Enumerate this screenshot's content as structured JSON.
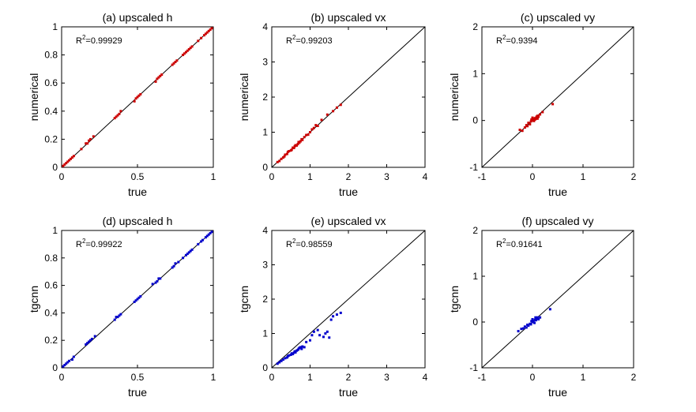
{
  "colors": {
    "numerical": "#cc0000",
    "tgcnn": "#0000cc",
    "line": "#000000"
  },
  "chart_data": [
    {
      "type": "scatter",
      "title": "(a) upscaled h",
      "xlabel": "true",
      "ylabel": "numerical",
      "r2_label": "R",
      "r2_value": "=0.99929",
      "xlim": [
        0,
        1
      ],
      "ylim": [
        0,
        1
      ],
      "xticks": [
        "0",
        "0.5",
        "1"
      ],
      "yticks": [
        "0",
        "0.2",
        "0.4",
        "0.6",
        "0.8",
        "1"
      ],
      "series": [
        {
          "color": "numerical",
          "points": [
            [
              0.01,
              0.01
            ],
            [
              0.02,
              0.02
            ],
            [
              0.03,
              0.03
            ],
            [
              0.04,
              0.04
            ],
            [
              0.05,
              0.05
            ],
            [
              0.06,
              0.06
            ],
            [
              0.07,
              0.07
            ],
            [
              0.08,
              0.08
            ],
            [
              0.13,
              0.13
            ],
            [
              0.16,
              0.17
            ],
            [
              0.17,
              0.17
            ],
            [
              0.18,
              0.19
            ],
            [
              0.19,
              0.2
            ],
            [
              0.21,
              0.22
            ],
            [
              0.35,
              0.35
            ],
            [
              0.36,
              0.36
            ],
            [
              0.37,
              0.37
            ],
            [
              0.38,
              0.38
            ],
            [
              0.39,
              0.4
            ],
            [
              0.48,
              0.47
            ],
            [
              0.49,
              0.49
            ],
            [
              0.5,
              0.5
            ],
            [
              0.51,
              0.51
            ],
            [
              0.52,
              0.52
            ],
            [
              0.62,
              0.61
            ],
            [
              0.63,
              0.63
            ],
            [
              0.64,
              0.64
            ],
            [
              0.65,
              0.65
            ],
            [
              0.66,
              0.66
            ],
            [
              0.73,
              0.73
            ],
            [
              0.74,
              0.74
            ],
            [
              0.75,
              0.75
            ],
            [
              0.76,
              0.76
            ],
            [
              0.8,
              0.8
            ],
            [
              0.81,
              0.81
            ],
            [
              0.82,
              0.82
            ],
            [
              0.83,
              0.83
            ],
            [
              0.84,
              0.84
            ],
            [
              0.85,
              0.85
            ],
            [
              0.86,
              0.86
            ],
            [
              0.9,
              0.9
            ],
            [
              0.92,
              0.92
            ],
            [
              0.94,
              0.94
            ],
            [
              0.95,
              0.95
            ],
            [
              0.96,
              0.96
            ],
            [
              0.97,
              0.97
            ],
            [
              0.98,
              0.98
            ],
            [
              0.99,
              0.99
            ]
          ]
        }
      ]
    },
    {
      "type": "scatter",
      "title": "(b) upscaled vx",
      "xlabel": "true",
      "ylabel": "numerical",
      "r2_label": "R",
      "r2_value": "=0.99203",
      "xlim": [
        0,
        4
      ],
      "ylim": [
        0,
        4
      ],
      "xticks": [
        "0",
        "1",
        "2",
        "3",
        "4"
      ],
      "yticks": [
        "0",
        "1",
        "2",
        "3",
        "4"
      ],
      "series": [
        {
          "color": "numerical",
          "points": [
            [
              0.15,
              0.15
            ],
            [
              0.2,
              0.18
            ],
            [
              0.25,
              0.24
            ],
            [
              0.3,
              0.28
            ],
            [
              0.33,
              0.31
            ],
            [
              0.35,
              0.36
            ],
            [
              0.4,
              0.38
            ],
            [
              0.42,
              0.44
            ],
            [
              0.45,
              0.46
            ],
            [
              0.5,
              0.48
            ],
            [
              0.52,
              0.5
            ],
            [
              0.55,
              0.56
            ],
            [
              0.58,
              0.55
            ],
            [
              0.6,
              0.6
            ],
            [
              0.62,
              0.63
            ],
            [
              0.65,
              0.62
            ],
            [
              0.68,
              0.66
            ],
            [
              0.7,
              0.72
            ],
            [
              0.72,
              0.7
            ],
            [
              0.75,
              0.74
            ],
            [
              0.78,
              0.8
            ],
            [
              0.8,
              0.78
            ],
            [
              0.85,
              0.86
            ],
            [
              0.9,
              0.92
            ],
            [
              0.95,
              0.93
            ],
            [
              1.0,
              1.0
            ],
            [
              1.05,
              1.08
            ],
            [
              1.1,
              1.12
            ],
            [
              1.15,
              1.2
            ],
            [
              1.2,
              1.18
            ],
            [
              1.3,
              1.35
            ],
            [
              1.45,
              1.5
            ],
            [
              1.6,
              1.6
            ],
            [
              1.7,
              1.7
            ],
            [
              1.8,
              1.78
            ]
          ]
        }
      ]
    },
    {
      "type": "scatter",
      "title": "(c) upscaled vy",
      "xlabel": "true",
      "ylabel": "numerical",
      "r2_label": "R",
      "r2_value": "=0.9394",
      "xlim": [
        -1,
        2
      ],
      "ylim": [
        -1,
        2
      ],
      "xticks": [
        "-1",
        "0",
        "1",
        "2"
      ],
      "yticks": [
        "-1",
        "0",
        "1",
        "2"
      ],
      "series": [
        {
          "color": "numerical",
          "points": [
            [
              -0.25,
              -0.2
            ],
            [
              -0.2,
              -0.22
            ],
            [
              -0.15,
              -0.15
            ],
            [
              -0.12,
              -0.1
            ],
            [
              -0.1,
              -0.12
            ],
            [
              -0.08,
              -0.05
            ],
            [
              -0.05,
              -0.08
            ],
            [
              -0.03,
              -0.02
            ],
            [
              0.0,
              0.0
            ],
            [
              0.02,
              0.03
            ],
            [
              0.03,
              -0.01
            ],
            [
              0.05,
              0.05
            ],
            [
              0.07,
              0.04
            ],
            [
              0.08,
              0.08
            ],
            [
              0.1,
              0.1
            ],
            [
              0.12,
              0.08
            ],
            [
              0.15,
              0.13
            ],
            [
              0.2,
              0.18
            ],
            [
              0.05,
              0.02
            ],
            [
              -0.02,
              0.02
            ],
            [
              0.0,
              0.06
            ],
            [
              0.1,
              0.04
            ],
            [
              0.4,
              0.35
            ]
          ]
        }
      ]
    },
    {
      "type": "scatter",
      "title": "(d) upscaled h",
      "xlabel": "true",
      "ylabel": "tgcnn",
      "r2_label": "R",
      "r2_value": "=0.99922",
      "xlim": [
        0,
        1
      ],
      "ylim": [
        0,
        1
      ],
      "xticks": [
        "0",
        "0.5",
        "1"
      ],
      "yticks": [
        "0",
        "0.2",
        "0.4",
        "0.6",
        "0.8",
        "1"
      ],
      "series": [
        {
          "color": "tgcnn",
          "points": [
            [
              0.01,
              0.01
            ],
            [
              0.02,
              0.02
            ],
            [
              0.03,
              0.03
            ],
            [
              0.04,
              0.04
            ],
            [
              0.05,
              0.05
            ],
            [
              0.07,
              0.06
            ],
            [
              0.08,
              0.08
            ],
            [
              0.16,
              0.17
            ],
            [
              0.17,
              0.18
            ],
            [
              0.18,
              0.19
            ],
            [
              0.19,
              0.2
            ],
            [
              0.2,
              0.21
            ],
            [
              0.22,
              0.23
            ],
            [
              0.35,
              0.35
            ],
            [
              0.36,
              0.37
            ],
            [
              0.37,
              0.37
            ],
            [
              0.38,
              0.38
            ],
            [
              0.39,
              0.39
            ],
            [
              0.48,
              0.48
            ],
            [
              0.49,
              0.49
            ],
            [
              0.5,
              0.5
            ],
            [
              0.51,
              0.51
            ],
            [
              0.52,
              0.52
            ],
            [
              0.6,
              0.61
            ],
            [
              0.62,
              0.62
            ],
            [
              0.63,
              0.63
            ],
            [
              0.64,
              0.65
            ],
            [
              0.65,
              0.65
            ],
            [
              0.73,
              0.73
            ],
            [
              0.74,
              0.74
            ],
            [
              0.75,
              0.76
            ],
            [
              0.77,
              0.77
            ],
            [
              0.8,
              0.8
            ],
            [
              0.82,
              0.82
            ],
            [
              0.83,
              0.83
            ],
            [
              0.84,
              0.84
            ],
            [
              0.85,
              0.85
            ],
            [
              0.86,
              0.86
            ],
            [
              0.9,
              0.9
            ],
            [
              0.92,
              0.92
            ],
            [
              0.93,
              0.93
            ],
            [
              0.95,
              0.95
            ],
            [
              0.96,
              0.96
            ],
            [
              0.97,
              0.97
            ],
            [
              0.98,
              0.98
            ],
            [
              0.99,
              0.99
            ]
          ]
        }
      ]
    },
    {
      "type": "scatter",
      "title": "(e) upscaled vx",
      "xlabel": "true",
      "ylabel": "tgcnn",
      "r2_label": "R",
      "r2_value": "=0.98559",
      "xlim": [
        0,
        4
      ],
      "ylim": [
        0,
        4
      ],
      "xticks": [
        "0",
        "1",
        "2",
        "3",
        "4"
      ],
      "yticks": [
        "0",
        "1",
        "2",
        "3",
        "4"
      ],
      "series": [
        {
          "color": "tgcnn",
          "points": [
            [
              0.15,
              0.12
            ],
            [
              0.2,
              0.16
            ],
            [
              0.25,
              0.2
            ],
            [
              0.3,
              0.24
            ],
            [
              0.35,
              0.28
            ],
            [
              0.4,
              0.3
            ],
            [
              0.42,
              0.34
            ],
            [
              0.45,
              0.36
            ],
            [
              0.5,
              0.38
            ],
            [
              0.52,
              0.42
            ],
            [
              0.55,
              0.4
            ],
            [
              0.58,
              0.44
            ],
            [
              0.6,
              0.48
            ],
            [
              0.62,
              0.45
            ],
            [
              0.65,
              0.5
            ],
            [
              0.68,
              0.52
            ],
            [
              0.7,
              0.55
            ],
            [
              0.72,
              0.58
            ],
            [
              0.75,
              0.6
            ],
            [
              0.78,
              0.55
            ],
            [
              0.8,
              0.62
            ],
            [
              0.85,
              0.6
            ],
            [
              0.9,
              0.75
            ],
            [
              1.0,
              0.8
            ],
            [
              1.05,
              0.95
            ],
            [
              1.1,
              1.05
            ],
            [
              1.2,
              1.1
            ],
            [
              1.25,
              0.95
            ],
            [
              1.35,
              0.9
            ],
            [
              1.4,
              1.0
            ],
            [
              1.45,
              1.05
            ],
            [
              1.5,
              0.88
            ],
            [
              1.55,
              1.4
            ],
            [
              1.6,
              1.5
            ],
            [
              1.7,
              1.55
            ],
            [
              1.8,
              1.6
            ]
          ]
        }
      ]
    },
    {
      "type": "scatter",
      "title": "(f) upscaled vy",
      "xlabel": "true",
      "ylabel": "tgcnn",
      "r2_label": "R",
      "r2_value": "=0.91641",
      "xlim": [
        -1,
        2
      ],
      "ylim": [
        -1,
        2
      ],
      "xticks": [
        "-1",
        "0",
        "1",
        "2"
      ],
      "yticks": [
        "-1",
        "0",
        "1",
        "2"
      ],
      "series": [
        {
          "color": "tgcnn",
          "points": [
            [
              -0.28,
              -0.2
            ],
            [
              -0.22,
              -0.15
            ],
            [
              -0.18,
              -0.14
            ],
            [
              -0.15,
              -0.1
            ],
            [
              -0.12,
              -0.12
            ],
            [
              -0.1,
              -0.06
            ],
            [
              -0.08,
              -0.08
            ],
            [
              -0.05,
              -0.04
            ],
            [
              -0.03,
              -0.05
            ],
            [
              0.0,
              0.0
            ],
            [
              0.02,
              0.02
            ],
            [
              0.04,
              -0.02
            ],
            [
              0.05,
              0.05
            ],
            [
              0.07,
              0.04
            ],
            [
              0.08,
              0.08
            ],
            [
              0.1,
              0.1
            ],
            [
              0.12,
              0.06
            ],
            [
              0.15,
              0.1
            ],
            [
              0.0,
              0.06
            ],
            [
              0.06,
              0.1
            ],
            [
              -0.02,
              0.02
            ],
            [
              0.35,
              0.28
            ]
          ]
        }
      ]
    }
  ]
}
